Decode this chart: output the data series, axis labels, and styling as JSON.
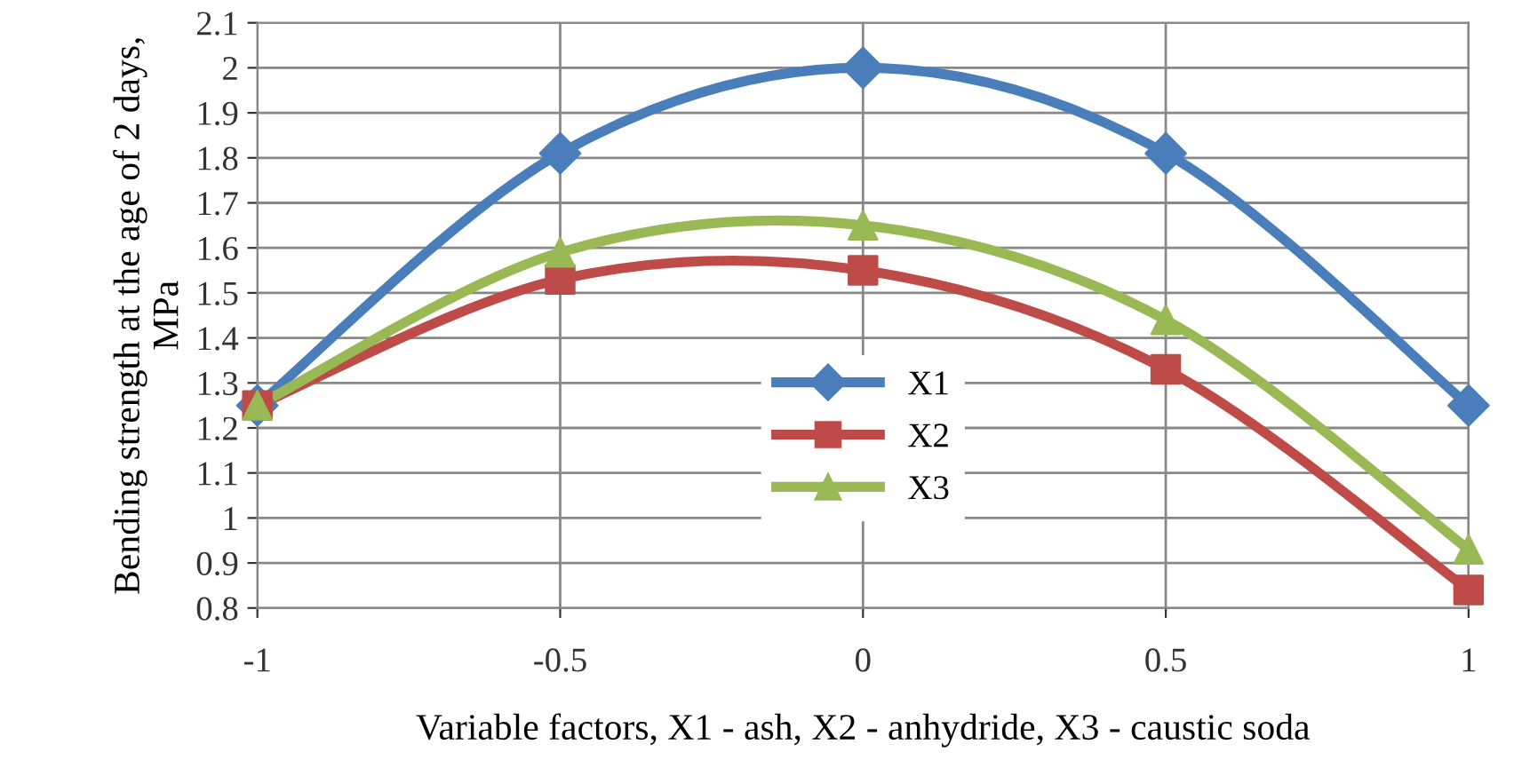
{
  "chart_data": {
    "type": "line",
    "xlabel": "Variable factors, X1 - ash, X2 - anhydride, X3 - caustic soda",
    "ylabel": "Bending strength at the age of 2 days, MPa",
    "x": [
      -1,
      -0.5,
      0,
      0.5,
      1
    ],
    "series": [
      {
        "name": "X1",
        "color": "#4a7ebb",
        "marker": "diamond",
        "values": [
          1.25,
          1.81,
          2,
          1.81,
          1.25
        ]
      },
      {
        "name": "X2",
        "color": "#be4b48",
        "marker": "square",
        "values": [
          1.25,
          1.53,
          1.55,
          1.33,
          0.84
        ]
      },
      {
        "name": "X3",
        "color": "#98b954",
        "marker": "triangle",
        "values": [
          1.25,
          1.59,
          1.65,
          1.44,
          0.93
        ]
      }
    ],
    "xlim": [
      -1,
      1
    ],
    "xticks": [
      -1,
      -0.5,
      0,
      0.5,
      1
    ],
    "ylim": [
      0.8,
      2.1
    ],
    "yticks": [
      0.8,
      0.9,
      1,
      1.1,
      1.2,
      1.3,
      1.4,
      1.5,
      1.6,
      1.7,
      1.8,
      1.9,
      2,
      2.1
    ],
    "grid": true,
    "legend": "center",
    "line_style": "solid"
  }
}
